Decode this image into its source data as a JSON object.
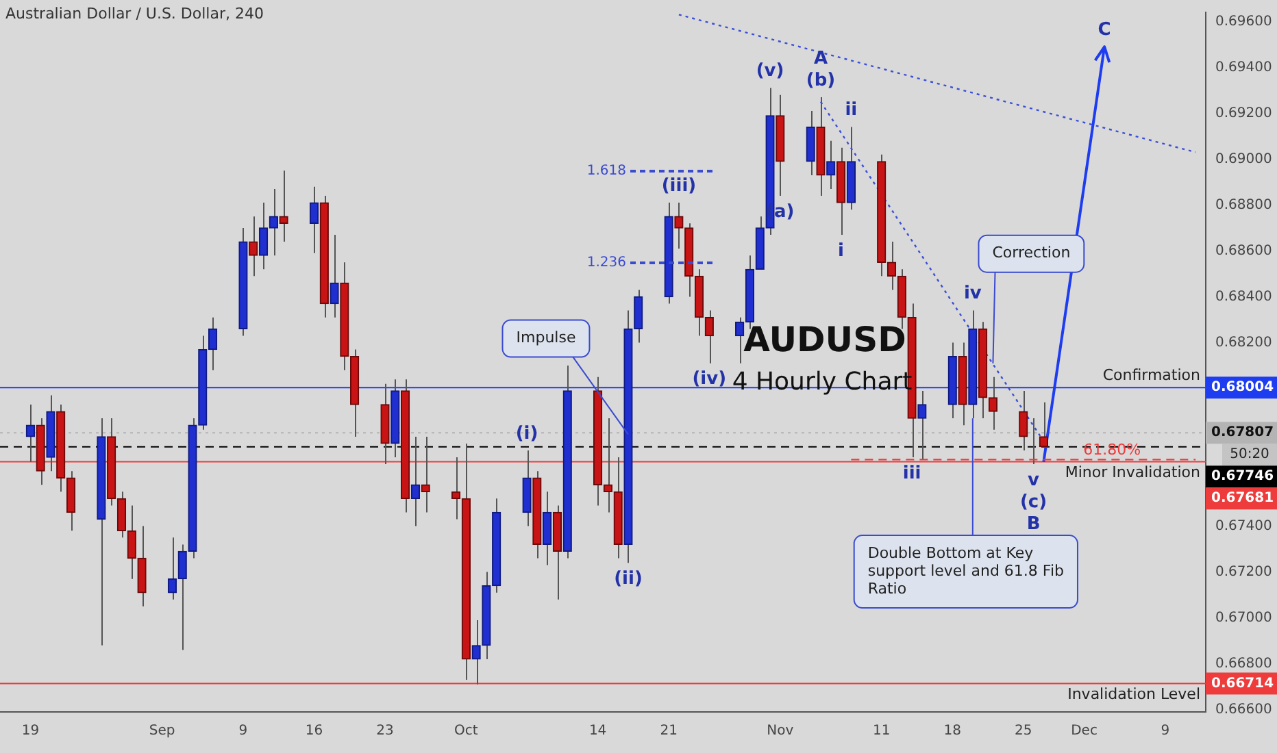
{
  "chart_data": {
    "type": "candlestick",
    "title": "Australian Dollar / U.S. Dollar, 240",
    "x": [
      "--08-19",
      "--08-20",
      "--08-21",
      "--08-22",
      "--08-23",
      "--08-26",
      "--08-27",
      "--08-28",
      "--08-29",
      "--08-30",
      "--09-02",
      "--09-03",
      "--09-04",
      "--09-05",
      "--09-06",
      "--09-09",
      "--09-10",
      "--09-11",
      "--09-12",
      "--09-13",
      "--09-16",
      "--09-17",
      "--09-18",
      "--09-19",
      "--09-20",
      "--09-23",
      "--09-24",
      "--09-25",
      "--09-26",
      "--09-27",
      "--09-30",
      "--10-01",
      "--10-02",
      "--10-03",
      "--10-04",
      "--10-07",
      "--10-08",
      "--10-09",
      "--10-10",
      "--10-11",
      "--10-14",
      "--10-15",
      "--10-16",
      "--10-17",
      "--10-18",
      "--10-21",
      "--10-22",
      "--10-23",
      "--10-24",
      "--10-25",
      "--10-28",
      "--10-29",
      "--10-30",
      "--10-31",
      "--11-01",
      "--11-04",
      "--11-05",
      "--11-06",
      "--11-07",
      "--11-08",
      "--11-11",
      "--11-12",
      "--11-13",
      "--11-14",
      "--11-15",
      "--11-18",
      "--11-19",
      "--11-20",
      "--11-21",
      "--11-22",
      "--11-25",
      "--11-26",
      "--11-27"
    ],
    "ohlc": [
      [
        0.6779,
        0.6793,
        0.6768,
        0.6784
      ],
      [
        0.6784,
        0.6787,
        0.6758,
        0.6764
      ],
      [
        0.677,
        0.6797,
        0.6764,
        0.679
      ],
      [
        0.679,
        0.6793,
        0.6755,
        0.6761
      ],
      [
        0.6761,
        0.6764,
        0.6738,
        0.6746
      ],
      [
        0.6743,
        0.6787,
        0.6688,
        0.6779
      ],
      [
        0.6779,
        0.6787,
        0.6749,
        0.6752
      ],
      [
        0.6752,
        0.6755,
        0.6735,
        0.6738
      ],
      [
        0.6738,
        0.6749,
        0.6717,
        0.6726
      ],
      [
        0.6726,
        0.674,
        0.6705,
        0.6711
      ],
      [
        0.6711,
        0.6735,
        0.6708,
        0.6717
      ],
      [
        0.6717,
        0.6732,
        0.6686,
        0.6729
      ],
      [
        0.6729,
        0.6787,
        0.6726,
        0.6784
      ],
      [
        0.6784,
        0.6823,
        0.6782,
        0.6817
      ],
      [
        0.6817,
        0.6831,
        0.6808,
        0.6826
      ],
      [
        0.6826,
        0.687,
        0.6823,
        0.6864
      ],
      [
        0.6864,
        0.6875,
        0.6849,
        0.6858
      ],
      [
        0.6858,
        0.6881,
        0.6852,
        0.687
      ],
      [
        0.687,
        0.6887,
        0.6858,
        0.6875
      ],
      [
        0.6875,
        0.6895,
        0.6864,
        0.6872
      ],
      [
        0.6872,
        0.6888,
        0.6859,
        0.6881
      ],
      [
        0.6881,
        0.6884,
        0.6831,
        0.6837
      ],
      [
        0.6837,
        0.6867,
        0.6831,
        0.6846
      ],
      [
        0.6846,
        0.6855,
        0.6808,
        0.6814
      ],
      [
        0.6814,
        0.6817,
        0.6779,
        0.6793
      ],
      [
        0.6793,
        0.6802,
        0.6767,
        0.6776
      ],
      [
        0.6776,
        0.6804,
        0.677,
        0.6799
      ],
      [
        0.6799,
        0.6804,
        0.6746,
        0.6752
      ],
      [
        0.6752,
        0.6779,
        0.674,
        0.6758
      ],
      [
        0.6758,
        0.6779,
        0.6746,
        0.6755
      ],
      [
        0.6755,
        0.677,
        0.6743,
        0.6752
      ],
      [
        0.6752,
        0.6776,
        0.6673,
        0.6682
      ],
      [
        0.6682,
        0.6699,
        0.6671,
        0.6688
      ],
      [
        0.6688,
        0.672,
        0.6682,
        0.6714
      ],
      [
        0.6714,
        0.6752,
        0.6711,
        0.6746
      ],
      [
        0.6746,
        0.6773,
        0.674,
        0.6761
      ],
      [
        0.6761,
        0.6764,
        0.6726,
        0.6732
      ],
      [
        0.6732,
        0.6755,
        0.6723,
        0.6746
      ],
      [
        0.6746,
        0.6749,
        0.6708,
        0.6729
      ],
      [
        0.6729,
        0.681,
        0.6726,
        0.6799
      ],
      [
        0.6799,
        0.6805,
        0.6749,
        0.6758
      ],
      [
        0.6758,
        0.6787,
        0.6746,
        0.6755
      ],
      [
        0.6755,
        0.677,
        0.6726,
        0.6732
      ],
      [
        0.6732,
        0.6834,
        0.6724,
        0.6826
      ],
      [
        0.6826,
        0.6843,
        0.682,
        0.684
      ],
      [
        0.684,
        0.6881,
        0.6837,
        0.6875
      ],
      [
        0.6875,
        0.6881,
        0.6861,
        0.687
      ],
      [
        0.687,
        0.6872,
        0.684,
        0.6849
      ],
      [
        0.6849,
        0.6852,
        0.6823,
        0.6831
      ],
      [
        0.6831,
        0.6834,
        0.6811,
        0.6823
      ],
      [
        0.6823,
        0.6831,
        0.6811,
        0.6829
      ],
      [
        0.6829,
        0.6858,
        0.6826,
        0.6852
      ],
      [
        0.6852,
        0.6875,
        0.6852,
        0.687
      ],
      [
        0.687,
        0.6931,
        0.6867,
        0.6919
      ],
      [
        0.6919,
        0.6928,
        0.6884,
        0.6899
      ],
      [
        0.6899,
        0.6921,
        0.6893,
        0.6914
      ],
      [
        0.6914,
        0.6927,
        0.6884,
        0.6893
      ],
      [
        0.6893,
        0.6908,
        0.6887,
        0.6899
      ],
      [
        0.6899,
        0.6905,
        0.6867,
        0.6881
      ],
      [
        0.6881,
        0.6914,
        0.6878,
        0.6899
      ],
      [
        0.6899,
        0.6902,
        0.6849,
        0.6855
      ],
      [
        0.6855,
        0.6864,
        0.6843,
        0.6849
      ],
      [
        0.6849,
        0.6852,
        0.6826,
        0.6831
      ],
      [
        0.6831,
        0.6837,
        0.677,
        0.6787
      ],
      [
        0.6787,
        0.6799,
        0.6769,
        0.6793
      ],
      [
        0.6793,
        0.682,
        0.6787,
        0.6814
      ],
      [
        0.6814,
        0.682,
        0.6784,
        0.6793
      ],
      [
        0.6793,
        0.6834,
        0.6787,
        0.6826
      ],
      [
        0.6826,
        0.6829,
        0.6787,
        0.6796
      ],
      [
        0.6796,
        0.6805,
        0.6782,
        0.679
      ],
      [
        0.679,
        0.6799,
        0.6773,
        0.6779
      ],
      [
        0.6779,
        0.6787,
        0.6767,
        0.6779
      ],
      [
        0.6779,
        0.6794,
        0.6774,
        0.67746
      ]
    ],
    "series": [
      {
        "type": "line",
        "x": [
          "--10-22",
          "--12-12"
        ],
        "values": [
          0.6963,
          0.6903
        ],
        "color": "#3b4fd8",
        "line_style": "dotted"
      },
      {
        "type": "line",
        "x": [
          "--11-05",
          "--11-27"
        ],
        "values": [
          0.6925,
          0.6777
        ],
        "color": "#3b4fd8",
        "line_style": "dotted"
      },
      {
        "type": "line",
        "name": "61.80%",
        "x": [
          "--11-08",
          "--12-12"
        ],
        "values": [
          0.6769,
          0.6769
        ],
        "color": "#ee3b3b",
        "line_style": "dashed"
      },
      {
        "type": "line",
        "x": [
          "--11-27",
          "--12-03"
        ],
        "values": [
          0.6768,
          0.6949
        ],
        "color": "#1e3cf0",
        "line_style": "solid"
      }
    ],
    "xlim": [
      "--08-16",
      "--12-13"
    ],
    "xticks": [
      {
        "value": "--08-19",
        "label": "19"
      },
      {
        "value": "--09-01",
        "label": "Sep"
      },
      {
        "value": "--09-09",
        "label": "9"
      },
      {
        "value": "--09-16",
        "label": "16"
      },
      {
        "value": "--09-23",
        "label": "23"
      },
      {
        "value": "--10-01",
        "label": "Oct"
      },
      {
        "value": "--10-14",
        "label": "14"
      },
      {
        "value": "--10-21",
        "label": "21"
      },
      {
        "value": "--11-01",
        "label": "Nov"
      },
      {
        "value": "--11-11",
        "label": "11"
      },
      {
        "value": "--11-18",
        "label": "18"
      },
      {
        "value": "--11-25",
        "label": "25"
      },
      {
        "value": "--12-01",
        "label": "Dec"
      },
      {
        "value": "--12-09",
        "label": "9"
      }
    ],
    "ylim": [
      0.6659,
      0.6964
    ],
    "yticks": [
      {
        "value": 0.666,
        "label": "0.66600"
      },
      {
        "value": 0.668,
        "label": "0.66800"
      },
      {
        "value": 0.67,
        "label": "0.67000"
      },
      {
        "value": 0.672,
        "label": "0.67200"
      },
      {
        "value": 0.674,
        "label": "0.67400"
      },
      {
        "value": 0.682,
        "label": "0.68200"
      },
      {
        "value": 0.684,
        "label": "0.68400"
      },
      {
        "value": 0.686,
        "label": "0.68600"
      },
      {
        "value": 0.688,
        "label": "0.68800"
      },
      {
        "value": 0.69,
        "label": "0.69000"
      },
      {
        "value": 0.692,
        "label": "0.69200"
      },
      {
        "value": 0.694,
        "label": "0.69400"
      },
      {
        "value": 0.696,
        "label": "0.69600"
      }
    ],
    "ref_lines": [
      {
        "axis": "y",
        "value": 0.68004,
        "label": "Confirmation",
        "color": "#1e3cf0",
        "line_style": "solid"
      },
      {
        "axis": "y",
        "value": 0.67807,
        "color": "#b4b4b4",
        "line_style": "dotted"
      },
      {
        "axis": "y",
        "value": 0.67746,
        "color": "#000000",
        "line_style": "dashed"
      },
      {
        "axis": "y",
        "value": 0.67681,
        "label": "Minor Invalidation",
        "color": "#ee3b3b",
        "line_style": "solid"
      },
      {
        "axis": "y",
        "value": 0.66714,
        "label": "Invalidation Level",
        "color": "#ee3b3b",
        "line_style": "solid"
      }
    ],
    "annotations": [
      "AUDUSD",
      "4 Hourly Chart",
      "50:20",
      "1.618",
      "1.236",
      {
        "text": "(i)",
        "x": "--10-07",
        "y": 0.6773
      },
      {
        "text": "(ii)",
        "x": "--10-17",
        "y": 0.6724
      },
      {
        "text": "(iii)",
        "x": "--10-22",
        "y": 0.6881
      },
      {
        "text": "(iv)",
        "x": "--10-25",
        "y": 0.6811
      },
      {
        "text": "(v)",
        "x": "--10-31",
        "y": 0.6931
      },
      {
        "text": "(a)",
        "x": "--11-01",
        "y": 0.6884
      },
      {
        "text": "(b)",
        "x": "--11-05",
        "y": 0.6927
      },
      {
        "text": "A",
        "x": "--11-05",
        "y": 0.6927
      },
      {
        "text": "i",
        "x": "--11-07",
        "y": 0.6867
      },
      {
        "text": "ii",
        "x": "--11-08",
        "y": 0.6914
      },
      {
        "text": "iii",
        "x": "--11-14",
        "y": 0.677
      },
      {
        "text": "iv",
        "x": "--11-20",
        "y": 0.6834
      },
      {
        "text": "v",
        "x": "--11-26",
        "y": 0.6767
      },
      {
        "text": "(c)",
        "x": "--11-26",
        "y": 0.6767
      },
      {
        "text": "B",
        "x": "--11-26",
        "y": 0.6767
      },
      {
        "text": "C",
        "x": "--12-03",
        "y": 0.6949
      },
      {
        "text": "Impulse",
        "x": "--10-17",
        "y": 0.678
      },
      {
        "text": "Correction",
        "x": "--11-22",
        "y": 0.6811
      },
      {
        "text": "Double Bottom at Key support level and 61.8 Fib Ratio",
        "x": "--11-20",
        "y": 0.6787
      },
      {
        "text": "0.68004",
        "x": "--12-13",
        "y": 0.68004
      },
      {
        "text": "0.67807",
        "x": "--12-13",
        "y": 0.67807
      },
      {
        "text": "0.67746",
        "x": "--12-13",
        "y": 0.67746
      },
      {
        "text": "0.67681",
        "x": "--12-13",
        "y": 0.67681
      },
      {
        "text": "0.66714",
        "x": "--12-13",
        "y": 0.66714
      }
    ]
  }
}
